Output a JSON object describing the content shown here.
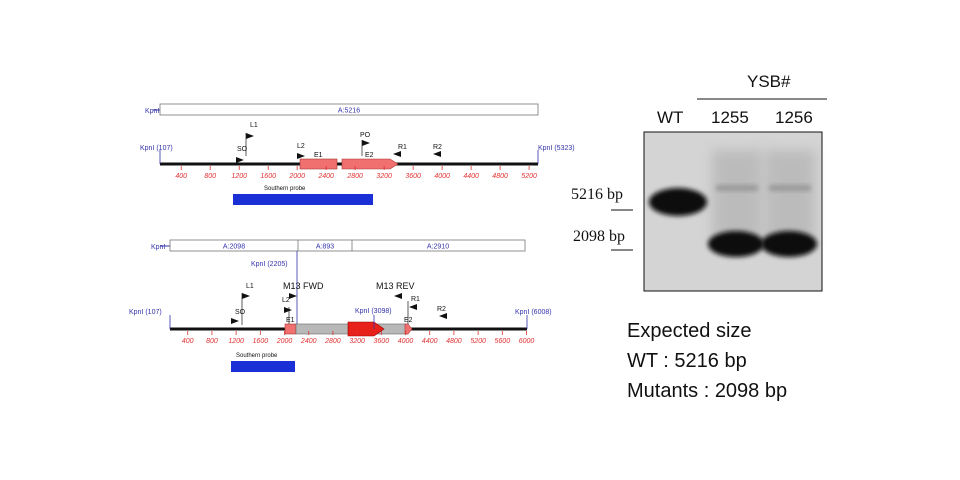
{
  "wt_map": {
    "bar_label": "KpnI",
    "bar_segment": "A:5216",
    "left_site": "KpnI (107)",
    "right_site": "KpnI (5323)",
    "features": [
      "L1",
      "SO",
      "L2",
      "E1",
      "PO",
      "E2",
      "R1",
      "R2"
    ],
    "ticks": [
      "400",
      "800",
      "1200",
      "1600",
      "2000",
      "2400",
      "2800",
      "3200",
      "3600",
      "4000",
      "4400",
      "4800",
      "5200"
    ],
    "probe": "Southern probe"
  },
  "mut_map": {
    "bar_label": "KpnI",
    "bar_segments": [
      "A:2098",
      "A:893",
      "A:2910"
    ],
    "site_2205": "KpnI (2205)",
    "site_3098": "KpnI (3098)",
    "left_site": "KpnI (107)",
    "right_site": "KpnI (6008)",
    "features": [
      "L1",
      "SO",
      "L2",
      "E1",
      "M13 FWD",
      "M13 REV",
      "R1",
      "E2",
      "R2"
    ],
    "ticks": [
      "400",
      "800",
      "1200",
      "1600",
      "2000",
      "2400",
      "2800",
      "3200",
      "3600",
      "4000",
      "4400",
      "4800",
      "5200",
      "5600",
      "6000"
    ],
    "probe": "Southern probe"
  },
  "blot": {
    "group_label": "YSB#",
    "lanes": [
      "WT",
      "1255",
      "1256"
    ],
    "sizes": [
      "5216 bp",
      "2098 bp"
    ]
  },
  "expected": {
    "title": "Expected size",
    "wt_line": "WT : 5216 bp",
    "mut_line": "Mutants : 2098 bp"
  },
  "colors": {
    "axis_red": "#e03030",
    "site_blue": "#3333aa",
    "probe_blue": "#1a2fd6",
    "exon_salmon": "#f07070",
    "cassette_grey": "#b8b8b8",
    "marker_red": "#e8201a"
  }
}
